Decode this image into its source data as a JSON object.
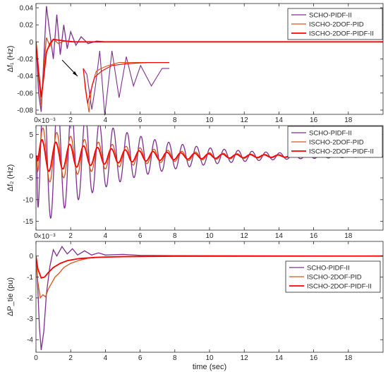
{
  "colors": {
    "series_1": "#7e2f8e",
    "series_2": "#d95319",
    "series_3": "#ff0000",
    "axis": "#262626"
  },
  "chart_data": [
    {
      "type": "line",
      "ylabel": "Δf₁ (Hz)",
      "xlabel": "",
      "exponent": "",
      "xlim": [
        0,
        20
      ],
      "ylim": [
        -0.085,
        0.045
      ],
      "yticks": [
        -0.08,
        -0.06,
        -0.04,
        -0.02,
        0,
        0.02,
        0.04
      ],
      "ytick_labels": [
        "-0.08",
        "-0.06",
        "-0.04",
        "-0.02",
        "0",
        "0.02",
        "0.04"
      ],
      "xticks": [
        0,
        2,
        4,
        6,
        8,
        10,
        12,
        14,
        16,
        18
      ],
      "xtick_labels": [
        "0",
        "2",
        "4",
        "6",
        "8",
        "10",
        "12",
        "14",
        "16",
        "18"
      ],
      "legend_position": "top-right",
      "inset": "zoomed view of early transient, arrow pointing to inset",
      "series": [
        {
          "name": "SCHO-PIDF-II",
          "color": "#7e2f8e",
          "points": [
            [
              0,
              0
            ],
            [
              0.15,
              -0.06
            ],
            [
              0.3,
              -0.082
            ],
            [
              0.45,
              -0.02
            ],
            [
              0.6,
              0.042
            ],
            [
              0.8,
              0.01
            ],
            [
              1.0,
              -0.02
            ],
            [
              1.2,
              0.032
            ],
            [
              1.4,
              -0.015
            ],
            [
              1.6,
              0.02
            ],
            [
              1.8,
              -0.008
            ],
            [
              2.0,
              0.012
            ],
            [
              2.3,
              -0.004
            ],
            [
              2.6,
              0.006
            ],
            [
              3.0,
              -0.002
            ],
            [
              3.5,
              0.001
            ],
            [
              4.0,
              0
            ],
            [
              20,
              0
            ]
          ]
        },
        {
          "name": "ISCHO-2DOF-PID",
          "color": "#d95319",
          "points": [
            [
              0,
              0
            ],
            [
              0.15,
              -0.04
            ],
            [
              0.3,
              -0.075
            ],
            [
              0.45,
              -0.03
            ],
            [
              0.6,
              0.005
            ],
            [
              0.8,
              -0.005
            ],
            [
              1.0,
              0.003
            ],
            [
              1.3,
              -0.002
            ],
            [
              1.6,
              0.001
            ],
            [
              2.0,
              0
            ],
            [
              20,
              0
            ]
          ]
        },
        {
          "name": "ISCHO-2DOF-PIDF-II",
          "color": "#ff0000",
          "points": [
            [
              0,
              0
            ],
            [
              0.15,
              -0.035
            ],
            [
              0.3,
              -0.065
            ],
            [
              0.45,
              -0.04
            ],
            [
              0.6,
              -0.012
            ],
            [
              0.8,
              -0.002
            ],
            [
              1.0,
              0.003
            ],
            [
              1.3,
              0.002
            ],
            [
              1.7,
              0.001
            ],
            [
              2.2,
              0
            ],
            [
              20,
              0
            ]
          ]
        }
      ]
    },
    {
      "type": "line",
      "ylabel": "Δf₂ (Hz)",
      "xlabel": "",
      "exponent": "×10⁻³",
      "xlim": [
        0,
        20
      ],
      "ylim": [
        -17,
        7
      ],
      "yticks": [
        -15,
        -10,
        -5,
        0,
        5
      ],
      "ytick_labels": [
        "-15",
        "-10",
        "-5",
        "0",
        "5"
      ],
      "xticks": [
        0,
        2,
        4,
        6,
        8,
        10,
        12,
        14,
        16,
        18
      ],
      "xtick_labels": [
        "0",
        "2",
        "4",
        "6",
        "8",
        "10",
        "12",
        "14",
        "16",
        "18"
      ],
      "legend_position": "top-right",
      "series": [
        {
          "name": "SCHO-PIDF-II",
          "color": "#7e2f8e",
          "model": {
            "amp0": 17,
            "decay": 0.22,
            "freq": 1.25,
            "phase": 0.0,
            "t0": 0.05
          }
        },
        {
          "name": "ISCHO-2DOF-PID",
          "color": "#d95319",
          "model": {
            "amp0": 7,
            "decay": 0.22,
            "freq": 1.25,
            "phase": 0.4,
            "t0": 0.05
          }
        },
        {
          "name": "ISCHO-2DOF-PIDF-II",
          "color": "#ff0000",
          "model": {
            "amp0": 4,
            "decay": 0.2,
            "freq": 1.25,
            "phase": 0.8,
            "t0": 0.05
          }
        }
      ]
    },
    {
      "type": "line",
      "ylabel": "ΔP_tie (pu)",
      "xlabel": "time (sec)",
      "exponent": "×10⁻³",
      "xlim": [
        0,
        20
      ],
      "ylim": [
        -4.6,
        0.7
      ],
      "yticks": [
        -4,
        -3,
        -2,
        -1,
        0
      ],
      "ytick_labels": [
        "-4",
        "-3",
        "-2",
        "-1",
        "0"
      ],
      "xticks": [
        0,
        2,
        4,
        6,
        8,
        10,
        12,
        14,
        16,
        18
      ],
      "xtick_labels": [
        "0",
        "2",
        "4",
        "6",
        "8",
        "10",
        "12",
        "14",
        "16",
        "18"
      ],
      "legend_position": "center-right",
      "series": [
        {
          "name": "SCHO-PIDF-II",
          "color": "#7e2f8e",
          "points": [
            [
              0,
              0
            ],
            [
              0.1,
              -1.5
            ],
            [
              0.2,
              -3.4
            ],
            [
              0.3,
              -4.5
            ],
            [
              0.45,
              -3.6
            ],
            [
              0.6,
              -1.8
            ],
            [
              0.8,
              -0.5
            ],
            [
              1.0,
              0.3
            ],
            [
              1.2,
              0.0
            ],
            [
              1.5,
              0.45
            ],
            [
              1.8,
              0.1
            ],
            [
              2.1,
              0.35
            ],
            [
              2.4,
              0.05
            ],
            [
              2.8,
              0.25
            ],
            [
              3.2,
              0.05
            ],
            [
              3.6,
              0.15
            ],
            [
              4.0,
              0.05
            ],
            [
              5,
              0.08
            ],
            [
              6,
              0.03
            ],
            [
              8,
              0.02
            ],
            [
              20,
              0
            ]
          ]
        },
        {
          "name": "ISCHO-2DOF-PID",
          "color": "#d95319",
          "points": [
            [
              0,
              0
            ],
            [
              0.1,
              -1.2
            ],
            [
              0.25,
              -2.0
            ],
            [
              0.4,
              -1.85
            ],
            [
              0.55,
              -1.95
            ],
            [
              0.7,
              -1.6
            ],
            [
              0.9,
              -1.3
            ],
            [
              1.1,
              -1.0
            ],
            [
              1.3,
              -0.85
            ],
            [
              1.6,
              -0.55
            ],
            [
              2.0,
              -0.35
            ],
            [
              2.5,
              -0.2
            ],
            [
              3.0,
              -0.1
            ],
            [
              4.0,
              -0.04
            ],
            [
              5,
              -0.02
            ],
            [
              8,
              0
            ],
            [
              20,
              0
            ]
          ]
        },
        {
          "name": "ISCHO-2DOF-PIDF-II",
          "color": "#ff0000",
          "points": [
            [
              0,
              0
            ],
            [
              0.1,
              -0.6
            ],
            [
              0.3,
              -1.05
            ],
            [
              0.5,
              -1.0
            ],
            [
              0.7,
              -0.8
            ],
            [
              1.0,
              -0.55
            ],
            [
              1.4,
              -0.35
            ],
            [
              1.8,
              -0.22
            ],
            [
              2.5,
              -0.12
            ],
            [
              3.5,
              -0.06
            ],
            [
              5,
              -0.03
            ],
            [
              8,
              -0.01
            ],
            [
              20,
              0
            ]
          ]
        }
      ]
    }
  ]
}
